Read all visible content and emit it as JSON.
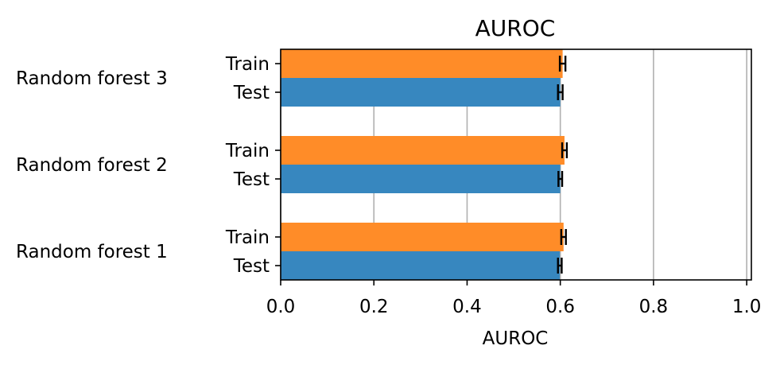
{
  "chart_data": {
    "type": "bar",
    "orientation": "horizontal",
    "title": "AUROC",
    "xlabel": "AUROC",
    "ylabel": "",
    "xlim": [
      0,
      1.01
    ],
    "xticks": [
      "0.0",
      "0.2",
      "0.4",
      "0.6",
      "0.8",
      "1.0"
    ],
    "grid": "x",
    "legend": "none",
    "groups": [
      {
        "name": "Random forest 3",
        "bars": [
          {
            "label": "Train",
            "value": 0.605,
            "error": 0.006,
            "color": "#ff8c28"
          },
          {
            "label": "Test",
            "value": 0.6,
            "error": 0.005,
            "color": "#3787bf"
          }
        ]
      },
      {
        "name": "Random forest 2",
        "bars": [
          {
            "label": "Train",
            "value": 0.609,
            "error": 0.005,
            "color": "#ff8c28"
          },
          {
            "label": "Test",
            "value": 0.6,
            "error": 0.004,
            "color": "#3787bf"
          }
        ]
      },
      {
        "name": "Random forest 1",
        "bars": [
          {
            "label": "Train",
            "value": 0.607,
            "error": 0.005,
            "color": "#ff8c28"
          },
          {
            "label": "Test",
            "value": 0.599,
            "error": 0.004,
            "color": "#3787bf"
          }
        ]
      }
    ]
  }
}
